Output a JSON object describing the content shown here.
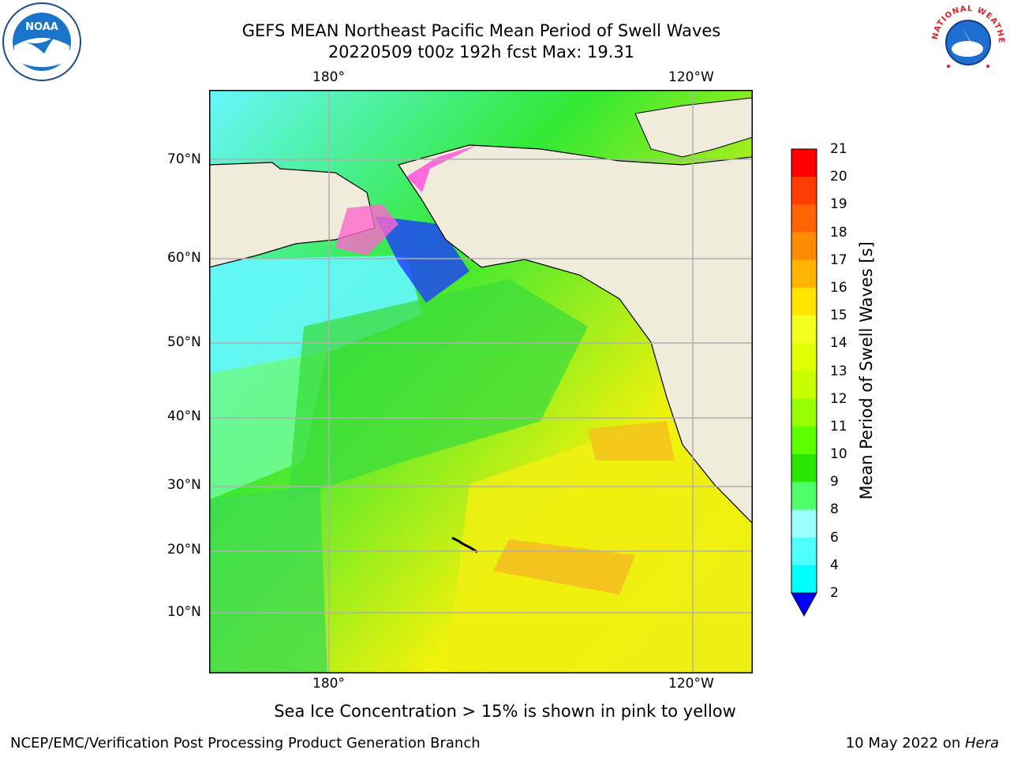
{
  "title": {
    "line1": "GEFS MEAN Northeast Pacific Mean Period of Swell Waves",
    "line2": "20220509 t00z 192h fcst   Max: 19.31"
  },
  "map": {
    "lon_labels_top": [
      "180°",
      "120°W"
    ],
    "lon_labels_bottom": [
      "180°",
      "120°W"
    ],
    "lat_labels": [
      "70°N",
      "60°N",
      "50°N",
      "40°N",
      "30°N",
      "20°N",
      "10°N"
    ],
    "land_color": "#efecdc",
    "ocean_gradient": {
      "cold": "#66f7ff",
      "mid": "#33e833",
      "warm": "#f2f20a",
      "hot": "#f5a623"
    }
  },
  "colorbar": {
    "label": "Mean Period of Swell Waves [s]",
    "ticks": [
      "21",
      "20",
      "19",
      "18",
      "17",
      "16",
      "15",
      "14",
      "13",
      "12",
      "11",
      "10",
      "9",
      "8",
      "6",
      "4",
      "2"
    ],
    "colors": [
      "#ff0000",
      "#ff3c00",
      "#ff6400",
      "#ff8c00",
      "#ffb400",
      "#ffe600",
      "#f5ff1e",
      "#e1ff00",
      "#c8ff00",
      "#96ff00",
      "#5aff00",
      "#28e600",
      "#4dff6a",
      "#99ffff",
      "#4dffff",
      "#00ffff",
      "#0096ff",
      "#0064ff"
    ],
    "extend_color": "#0000ff"
  },
  "subtitle": "Sea Ice Concentration > 15% is shown in pink to yellow",
  "footer": {
    "left": "NCEP/EMC/Verification Post Processing Product Generation Branch",
    "right_prefix": "10 May 2022 on ",
    "right_host": "Hera"
  },
  "logos": {
    "left": "NOAA",
    "right": "NATIONAL WEATHER SERVICE"
  }
}
